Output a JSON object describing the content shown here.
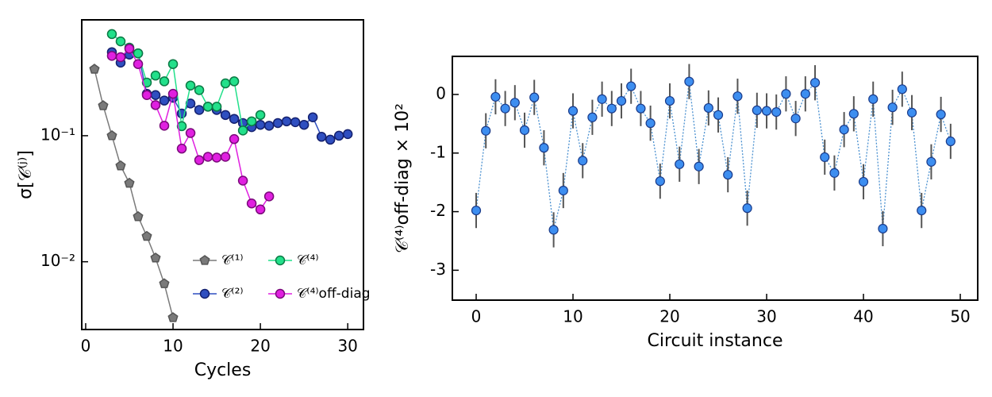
{
  "chart_data": [
    {
      "type": "line",
      "log_y": true,
      "xlabel": "Cycles",
      "ylabel": "σ[𝒞⁽ʲ⁾]",
      "xlim": [
        -0.45,
        31.8
      ],
      "ylim": [
        0.0029,
        0.83
      ],
      "xticks": [
        0,
        10,
        20,
        30
      ],
      "yticks": [
        {
          "value": 0.01,
          "label": "10⁻²"
        },
        {
          "value": 0.1,
          "label": "10⁻¹"
        }
      ],
      "legend": "lower right",
      "series": [
        {
          "name": "𝒞⁽¹⁾",
          "color": "#7a7a7a",
          "edge": "#555555",
          "marker": "pentagon",
          "x": [
            1,
            2,
            3,
            4,
            5,
            6,
            7,
            8,
            9,
            10
          ],
          "values": [
            0.337,
            0.173,
            0.1,
            0.0577,
            0.042,
            0.0228,
            0.0159,
            0.0107,
            0.0067,
            0.0036
          ]
        },
        {
          "name": "𝒞⁽²⁾",
          "color": "#2f4fc0",
          "edge": "#14206e",
          "marker": "circle",
          "x": [
            3,
            4,
            5,
            6,
            7,
            8,
            9,
            10,
            11,
            12,
            13,
            14,
            15,
            16,
            17,
            18,
            19,
            20,
            21,
            22,
            23,
            24,
            25,
            26,
            27,
            28,
            29,
            30
          ],
          "values": [
            0.46,
            0.38,
            0.44,
            0.45,
            0.215,
            0.21,
            0.19,
            0.2,
            0.15,
            0.18,
            0.16,
            0.17,
            0.16,
            0.146,
            0.136,
            0.126,
            0.117,
            0.122,
            0.12,
            0.126,
            0.13,
            0.128,
            0.122,
            0.14,
            0.098,
            0.093,
            0.1,
            0.103
          ]
        },
        {
          "name": "𝒞⁽⁴⁾",
          "color": "#22e08a",
          "edge": "#0b7a45",
          "marker": "circle",
          "x": [
            3,
            4,
            5,
            6,
            7,
            8,
            9,
            10,
            11,
            12,
            13,
            14,
            15,
            16,
            17,
            18,
            19,
            20
          ],
          "values": [
            0.64,
            0.56,
            0.5,
            0.45,
            0.264,
            0.3,
            0.27,
            0.37,
            0.119,
            0.25,
            0.23,
            0.17,
            0.17,
            0.26,
            0.27,
            0.11,
            0.13,
            0.146
          ]
        },
        {
          "name": "𝒞⁽⁴⁾off-diag",
          "color": "#e020e0",
          "edge": "#7a0a7a",
          "marker": "circle",
          "x": [
            3,
            4,
            5,
            6,
            7,
            8,
            9,
            10,
            11,
            12,
            13,
            14,
            15,
            16,
            17,
            18,
            19,
            20,
            21
          ],
          "values": [
            0.43,
            0.42,
            0.49,
            0.37,
            0.21,
            0.175,
            0.12,
            0.215,
            0.079,
            0.105,
            0.064,
            0.068,
            0.067,
            0.068,
            0.094,
            0.044,
            0.029,
            0.026,
            0.033
          ]
        }
      ]
    },
    {
      "type": "errorbar",
      "xlabel": "Circuit instance",
      "ylabel": "𝒞⁽⁴⁾off-diag × 10²",
      "xlim": [
        -2.46,
        51.8
      ],
      "ylim": [
        -3.51,
        0.65
      ],
      "xticks": [
        0,
        10,
        20,
        30,
        40,
        50
      ],
      "yticks": [
        0,
        -1,
        -2,
        -3
      ],
      "color": "#3d8ef0",
      "edge": "#1a3b8a",
      "line_color": "#4a90d0",
      "error_color": "#555555",
      "x": [
        0,
        1,
        2,
        3,
        4,
        5,
        6,
        7,
        8,
        9,
        10,
        11,
        12,
        13,
        14,
        15,
        16,
        17,
        18,
        19,
        20,
        21,
        22,
        23,
        24,
        25,
        26,
        27,
        28,
        29,
        30,
        31,
        32,
        33,
        34,
        35,
        36,
        37,
        38,
        39,
        40,
        41,
        42,
        43,
        44,
        45,
        46,
        47,
        48,
        49
      ],
      "values": [
        -1.98,
        -0.62,
        -0.04,
        -0.24,
        -0.14,
        -0.61,
        -0.05,
        -0.91,
        -2.31,
        -1.64,
        -0.28,
        -1.13,
        -0.39,
        -0.08,
        -0.24,
        -0.11,
        0.14,
        -0.24,
        -0.49,
        -1.48,
        -0.11,
        -1.19,
        0.22,
        -1.23,
        -0.23,
        -0.35,
        -1.37,
        -0.03,
        -1.94,
        -0.27,
        -0.28,
        -0.3,
        0.01,
        -0.41,
        0.01,
        0.2,
        -1.07,
        -1.34,
        -0.6,
        -0.33,
        -1.49,
        -0.08,
        -2.29,
        -0.22,
        0.09,
        -0.31,
        -1.98,
        -1.15,
        -0.34,
        -0.8
      ],
      "errors": [
        0.3,
        0.3,
        0.3,
        0.3,
        0.3,
        0.3,
        0.3,
        0.3,
        0.3,
        0.3,
        0.3,
        0.3,
        0.3,
        0.3,
        0.3,
        0.3,
        0.3,
        0.3,
        0.3,
        0.3,
        0.3,
        0.3,
        0.3,
        0.3,
        0.3,
        0.3,
        0.3,
        0.3,
        0.3,
        0.3,
        0.3,
        0.3,
        0.3,
        0.3,
        0.3,
        0.3,
        0.3,
        0.3,
        0.3,
        0.3,
        0.3,
        0.3,
        0.3,
        0.3,
        0.3,
        0.3,
        0.3,
        0.3,
        0.3,
        0.3
      ]
    }
  ]
}
